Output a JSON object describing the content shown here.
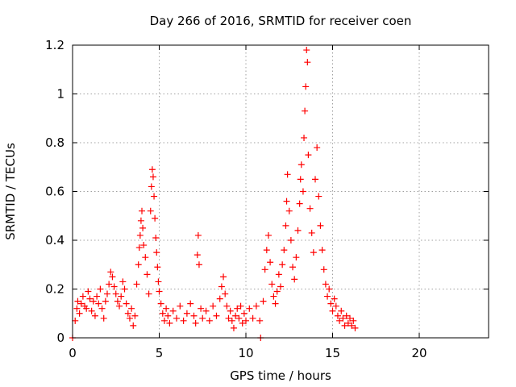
{
  "chart_data": {
    "type": "scatter",
    "title": "Day 266 of 2016, SRMTID for receiver coen",
    "xlabel": "GPS time / hours",
    "ylabel": "SRMTID / TECUs",
    "xlim": [
      0,
      24
    ],
    "ylim": [
      0,
      1.2
    ],
    "x_ticks": [
      0,
      5,
      10,
      15,
      20
    ],
    "y_ticks": [
      0,
      0.2,
      0.4,
      0.6,
      0.8,
      1.0,
      1.2
    ],
    "x_tick_labels": [
      "0",
      "5",
      "10",
      "15",
      "20"
    ],
    "y_tick_labels": [
      "0",
      "0.2",
      "0.4",
      "0.6",
      "0.8",
      "1",
      "1.2"
    ],
    "grid": true,
    "marker": "plus",
    "color": "#ff0000",
    "series": [
      {
        "name": "SRMTID",
        "points": [
          [
            0.0,
            0.0
          ],
          [
            0.15,
            0.07
          ],
          [
            0.25,
            0.12
          ],
          [
            0.3,
            0.15
          ],
          [
            0.4,
            0.1
          ],
          [
            0.5,
            0.14
          ],
          [
            0.6,
            0.17
          ],
          [
            0.7,
            0.13
          ],
          [
            0.8,
            0.12
          ],
          [
            0.9,
            0.19
          ],
          [
            1.0,
            0.16
          ],
          [
            1.1,
            0.11
          ],
          [
            1.2,
            0.15
          ],
          [
            1.3,
            0.09
          ],
          [
            1.4,
            0.17
          ],
          [
            1.5,
            0.14
          ],
          [
            1.6,
            0.2
          ],
          [
            1.7,
            0.12
          ],
          [
            1.8,
            0.08
          ],
          [
            1.9,
            0.15
          ],
          [
            2.0,
            0.18
          ],
          [
            2.1,
            0.22
          ],
          [
            2.2,
            0.27
          ],
          [
            2.3,
            0.25
          ],
          [
            2.4,
            0.21
          ],
          [
            2.5,
            0.18
          ],
          [
            2.6,
            0.15
          ],
          [
            2.7,
            0.13
          ],
          [
            2.8,
            0.17
          ],
          [
            2.9,
            0.23
          ],
          [
            3.0,
            0.2
          ],
          [
            3.1,
            0.14
          ],
          [
            3.2,
            0.1
          ],
          [
            3.3,
            0.08
          ],
          [
            3.4,
            0.12
          ],
          [
            3.5,
            0.05
          ],
          [
            3.6,
            0.09
          ],
          [
            3.7,
            0.22
          ],
          [
            3.8,
            0.3
          ],
          [
            3.85,
            0.37
          ],
          [
            3.9,
            0.42
          ],
          [
            3.95,
            0.48
          ],
          [
            4.0,
            0.52
          ],
          [
            4.05,
            0.45
          ],
          [
            4.1,
            0.38
          ],
          [
            4.2,
            0.33
          ],
          [
            4.3,
            0.26
          ],
          [
            4.4,
            0.18
          ],
          [
            4.5,
            0.52
          ],
          [
            4.55,
            0.62
          ],
          [
            4.6,
            0.69
          ],
          [
            4.65,
            0.66
          ],
          [
            4.7,
            0.58
          ],
          [
            4.75,
            0.49
          ],
          [
            4.8,
            0.41
          ],
          [
            4.85,
            0.35
          ],
          [
            4.9,
            0.29
          ],
          [
            4.95,
            0.23
          ],
          [
            5.0,
            0.19
          ],
          [
            5.1,
            0.14
          ],
          [
            5.2,
            0.1
          ],
          [
            5.3,
            0.07
          ],
          [
            5.4,
            0.12
          ],
          [
            5.5,
            0.09
          ],
          [
            5.6,
            0.06
          ],
          [
            5.8,
            0.11
          ],
          [
            6.0,
            0.08
          ],
          [
            6.2,
            0.13
          ],
          [
            6.4,
            0.07
          ],
          [
            6.6,
            0.1
          ],
          [
            6.8,
            0.14
          ],
          [
            7.0,
            0.09
          ],
          [
            7.1,
            0.06
          ],
          [
            7.2,
            0.34
          ],
          [
            7.25,
            0.42
          ],
          [
            7.3,
            0.3
          ],
          [
            7.4,
            0.12
          ],
          [
            7.5,
            0.08
          ],
          [
            7.7,
            0.11
          ],
          [
            7.9,
            0.07
          ],
          [
            8.1,
            0.13
          ],
          [
            8.3,
            0.09
          ],
          [
            8.5,
            0.16
          ],
          [
            8.6,
            0.21
          ],
          [
            8.7,
            0.25
          ],
          [
            8.8,
            0.18
          ],
          [
            8.9,
            0.13
          ],
          [
            9.0,
            0.08
          ],
          [
            9.1,
            0.11
          ],
          [
            9.2,
            0.07
          ],
          [
            9.3,
            0.04
          ],
          [
            9.4,
            0.09
          ],
          [
            9.5,
            0.12
          ],
          [
            9.6,
            0.08
          ],
          [
            9.7,
            0.13
          ],
          [
            9.8,
            0.06
          ],
          [
            9.9,
            0.1
          ],
          [
            10.0,
            0.07
          ],
          [
            10.2,
            0.12
          ],
          [
            10.4,
            0.08
          ],
          [
            10.6,
            0.13
          ],
          [
            10.8,
            0.07
          ],
          [
            10.85,
            0.0
          ],
          [
            11.0,
            0.15
          ],
          [
            11.1,
            0.28
          ],
          [
            11.2,
            0.36
          ],
          [
            11.3,
            0.42
          ],
          [
            11.4,
            0.31
          ],
          [
            11.5,
            0.22
          ],
          [
            11.6,
            0.17
          ],
          [
            11.7,
            0.14
          ],
          [
            11.8,
            0.19
          ],
          [
            11.9,
            0.26
          ],
          [
            12.0,
            0.21
          ],
          [
            12.1,
            0.3
          ],
          [
            12.2,
            0.36
          ],
          [
            12.3,
            0.46
          ],
          [
            12.35,
            0.56
          ],
          [
            12.4,
            0.67
          ],
          [
            12.5,
            0.52
          ],
          [
            12.6,
            0.4
          ],
          [
            12.7,
            0.29
          ],
          [
            12.8,
            0.24
          ],
          [
            12.9,
            0.33
          ],
          [
            13.0,
            0.44
          ],
          [
            13.1,
            0.55
          ],
          [
            13.15,
            0.65
          ],
          [
            13.2,
            0.71
          ],
          [
            13.3,
            0.6
          ],
          [
            13.35,
            0.82
          ],
          [
            13.4,
            0.93
          ],
          [
            13.45,
            1.03
          ],
          [
            13.5,
            1.18
          ],
          [
            13.55,
            1.13
          ],
          [
            13.6,
            0.75
          ],
          [
            13.7,
            0.53
          ],
          [
            13.8,
            0.43
          ],
          [
            13.9,
            0.35
          ],
          [
            14.0,
            0.65
          ],
          [
            14.1,
            0.78
          ],
          [
            14.2,
            0.58
          ],
          [
            14.3,
            0.46
          ],
          [
            14.4,
            0.36
          ],
          [
            14.5,
            0.28
          ],
          [
            14.6,
            0.22
          ],
          [
            14.7,
            0.17
          ],
          [
            14.8,
            0.2
          ],
          [
            14.9,
            0.14
          ],
          [
            15.0,
            0.11
          ],
          [
            15.1,
            0.16
          ],
          [
            15.2,
            0.13
          ],
          [
            15.3,
            0.09
          ],
          [
            15.4,
            0.07
          ],
          [
            15.5,
            0.11
          ],
          [
            15.6,
            0.08
          ],
          [
            15.7,
            0.05
          ],
          [
            15.8,
            0.09
          ],
          [
            15.9,
            0.06
          ],
          [
            16.0,
            0.08
          ],
          [
            16.1,
            0.05
          ],
          [
            16.2,
            0.07
          ],
          [
            16.3,
            0.04
          ]
        ]
      }
    ]
  }
}
